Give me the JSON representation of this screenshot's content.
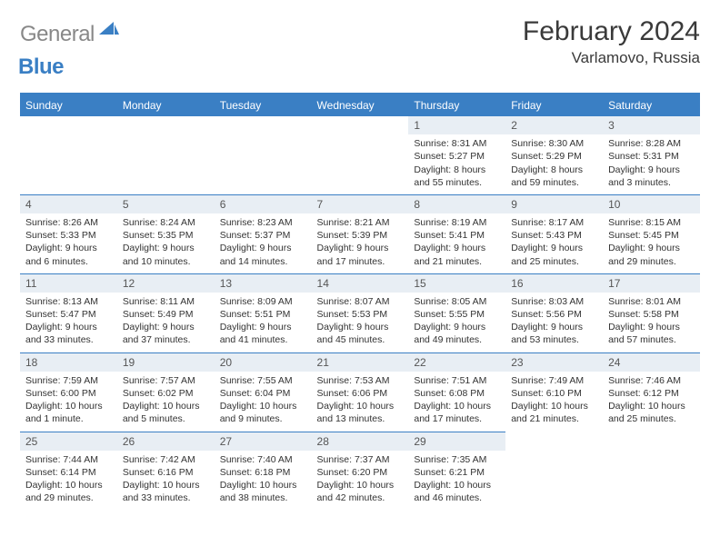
{
  "brand": {
    "part1": "General",
    "part2": "Blue"
  },
  "title": "February 2024",
  "location": "Varlamovo, Russia",
  "colors": {
    "accent": "#3a7fc4",
    "header_bg": "#3a7fc4",
    "header_text": "#ffffff",
    "daynum_bg": "#e8eef4",
    "body_text": "#333333",
    "logo_gray": "#888888",
    "page_bg": "#ffffff"
  },
  "typography": {
    "title_fontsize": 30,
    "location_fontsize": 17,
    "header_fontsize": 12,
    "cell_fontsize": 10.5
  },
  "day_headers": [
    "Sunday",
    "Monday",
    "Tuesday",
    "Wednesday",
    "Thursday",
    "Friday",
    "Saturday"
  ],
  "weeks": [
    [
      null,
      null,
      null,
      null,
      {
        "n": "1",
        "sr": "Sunrise: 8:31 AM",
        "ss": "Sunset: 5:27 PM",
        "dl": "Daylight: 8 hours and 55 minutes."
      },
      {
        "n": "2",
        "sr": "Sunrise: 8:30 AM",
        "ss": "Sunset: 5:29 PM",
        "dl": "Daylight: 8 hours and 59 minutes."
      },
      {
        "n": "3",
        "sr": "Sunrise: 8:28 AM",
        "ss": "Sunset: 5:31 PM",
        "dl": "Daylight: 9 hours and 3 minutes."
      }
    ],
    [
      {
        "n": "4",
        "sr": "Sunrise: 8:26 AM",
        "ss": "Sunset: 5:33 PM",
        "dl": "Daylight: 9 hours and 6 minutes."
      },
      {
        "n": "5",
        "sr": "Sunrise: 8:24 AM",
        "ss": "Sunset: 5:35 PM",
        "dl": "Daylight: 9 hours and 10 minutes."
      },
      {
        "n": "6",
        "sr": "Sunrise: 8:23 AM",
        "ss": "Sunset: 5:37 PM",
        "dl": "Daylight: 9 hours and 14 minutes."
      },
      {
        "n": "7",
        "sr": "Sunrise: 8:21 AM",
        "ss": "Sunset: 5:39 PM",
        "dl": "Daylight: 9 hours and 17 minutes."
      },
      {
        "n": "8",
        "sr": "Sunrise: 8:19 AM",
        "ss": "Sunset: 5:41 PM",
        "dl": "Daylight: 9 hours and 21 minutes."
      },
      {
        "n": "9",
        "sr": "Sunrise: 8:17 AM",
        "ss": "Sunset: 5:43 PM",
        "dl": "Daylight: 9 hours and 25 minutes."
      },
      {
        "n": "10",
        "sr": "Sunrise: 8:15 AM",
        "ss": "Sunset: 5:45 PM",
        "dl": "Daylight: 9 hours and 29 minutes."
      }
    ],
    [
      {
        "n": "11",
        "sr": "Sunrise: 8:13 AM",
        "ss": "Sunset: 5:47 PM",
        "dl": "Daylight: 9 hours and 33 minutes."
      },
      {
        "n": "12",
        "sr": "Sunrise: 8:11 AM",
        "ss": "Sunset: 5:49 PM",
        "dl": "Daylight: 9 hours and 37 minutes."
      },
      {
        "n": "13",
        "sr": "Sunrise: 8:09 AM",
        "ss": "Sunset: 5:51 PM",
        "dl": "Daylight: 9 hours and 41 minutes."
      },
      {
        "n": "14",
        "sr": "Sunrise: 8:07 AM",
        "ss": "Sunset: 5:53 PM",
        "dl": "Daylight: 9 hours and 45 minutes."
      },
      {
        "n": "15",
        "sr": "Sunrise: 8:05 AM",
        "ss": "Sunset: 5:55 PM",
        "dl": "Daylight: 9 hours and 49 minutes."
      },
      {
        "n": "16",
        "sr": "Sunrise: 8:03 AM",
        "ss": "Sunset: 5:56 PM",
        "dl": "Daylight: 9 hours and 53 minutes."
      },
      {
        "n": "17",
        "sr": "Sunrise: 8:01 AM",
        "ss": "Sunset: 5:58 PM",
        "dl": "Daylight: 9 hours and 57 minutes."
      }
    ],
    [
      {
        "n": "18",
        "sr": "Sunrise: 7:59 AM",
        "ss": "Sunset: 6:00 PM",
        "dl": "Daylight: 10 hours and 1 minute."
      },
      {
        "n": "19",
        "sr": "Sunrise: 7:57 AM",
        "ss": "Sunset: 6:02 PM",
        "dl": "Daylight: 10 hours and 5 minutes."
      },
      {
        "n": "20",
        "sr": "Sunrise: 7:55 AM",
        "ss": "Sunset: 6:04 PM",
        "dl": "Daylight: 10 hours and 9 minutes."
      },
      {
        "n": "21",
        "sr": "Sunrise: 7:53 AM",
        "ss": "Sunset: 6:06 PM",
        "dl": "Daylight: 10 hours and 13 minutes."
      },
      {
        "n": "22",
        "sr": "Sunrise: 7:51 AM",
        "ss": "Sunset: 6:08 PM",
        "dl": "Daylight: 10 hours and 17 minutes."
      },
      {
        "n": "23",
        "sr": "Sunrise: 7:49 AM",
        "ss": "Sunset: 6:10 PM",
        "dl": "Daylight: 10 hours and 21 minutes."
      },
      {
        "n": "24",
        "sr": "Sunrise: 7:46 AM",
        "ss": "Sunset: 6:12 PM",
        "dl": "Daylight: 10 hours and 25 minutes."
      }
    ],
    [
      {
        "n": "25",
        "sr": "Sunrise: 7:44 AM",
        "ss": "Sunset: 6:14 PM",
        "dl": "Daylight: 10 hours and 29 minutes."
      },
      {
        "n": "26",
        "sr": "Sunrise: 7:42 AM",
        "ss": "Sunset: 6:16 PM",
        "dl": "Daylight: 10 hours and 33 minutes."
      },
      {
        "n": "27",
        "sr": "Sunrise: 7:40 AM",
        "ss": "Sunset: 6:18 PM",
        "dl": "Daylight: 10 hours and 38 minutes."
      },
      {
        "n": "28",
        "sr": "Sunrise: 7:37 AM",
        "ss": "Sunset: 6:20 PM",
        "dl": "Daylight: 10 hours and 42 minutes."
      },
      {
        "n": "29",
        "sr": "Sunrise: 7:35 AM",
        "ss": "Sunset: 6:21 PM",
        "dl": "Daylight: 10 hours and 46 minutes."
      },
      null,
      null
    ]
  ]
}
